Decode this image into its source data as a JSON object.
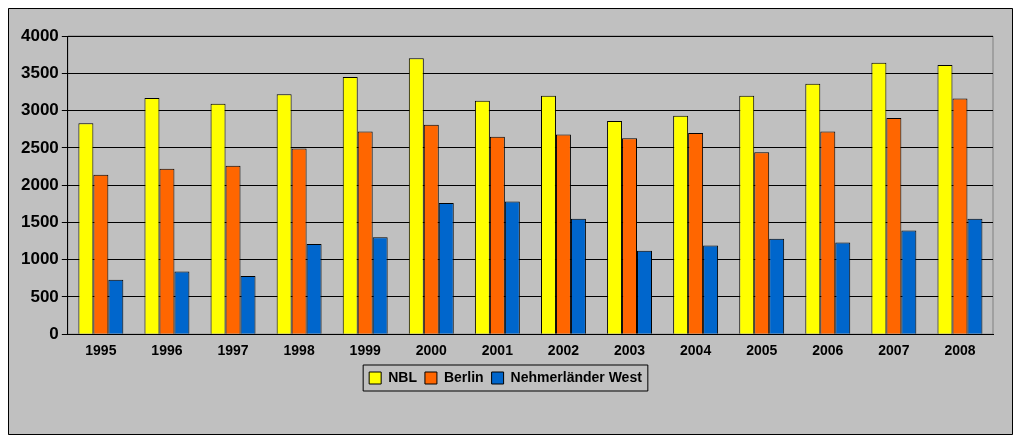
{
  "chart_data": {
    "type": "bar",
    "categories": [
      "1995",
      "1996",
      "1997",
      "1998",
      "1999",
      "2000",
      "2001",
      "2002",
      "2003",
      "2004",
      "2005",
      "2006",
      "2007",
      "2008"
    ],
    "series": [
      {
        "name": "NBL",
        "color": "#ffff00",
        "values": [
          2830,
          3170,
          3090,
          3220,
          3450,
          3700,
          3130,
          3200,
          2860,
          2930,
          3200,
          3360,
          3640,
          3610
        ]
      },
      {
        "name": "Berlin",
        "color": "#ff6600",
        "values": [
          2140,
          2220,
          2260,
          2490,
          2720,
          2810,
          2650,
          2680,
          2630,
          2700,
          2440,
          2720,
          2900,
          3160
        ]
      },
      {
        "name": "Nehmerländer West",
        "color": "#0066cc",
        "values": [
          730,
          840,
          780,
          1210,
          1300,
          1760,
          1780,
          1550,
          1120,
          1190,
          1280,
          1230,
          1390,
          1550
        ]
      }
    ],
    "ylim": [
      0,
      4000
    ],
    "yticks": [
      0,
      500,
      1000,
      1500,
      2000,
      2500,
      3000,
      3500,
      4000
    ],
    "grid": "y",
    "legend": "bottom"
  }
}
